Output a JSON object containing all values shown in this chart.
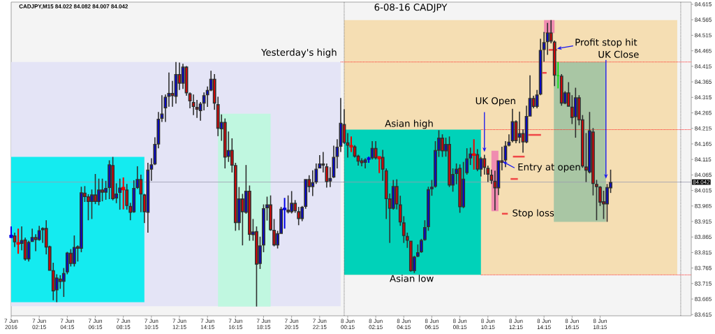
{
  "chart_data": {
    "type": "candlestick",
    "title": "6-08-16  CADJPY",
    "annotations": [
      "CADJPY,M15 84.022 84.082 84.007 84.042",
      {
        "text": "UK Open",
        "x": "2016-06-08T10:00",
        "y": 84.139
      },
      {
        "text": "Entry at open",
        "x": "2016-06-08T11:18",
        "y": 84.108
      },
      {
        "text": "Profit stop hit",
        "x": "2016-06-08T15:11",
        "y": 84.472
      },
      {
        "text": "UK Close",
        "x": "2016-06-08T18:40",
        "y": 84.053
      },
      {
        "text": "Stop loss",
        "x": "2016-06-08T11:40",
        "y": 83.94
      },
      {
        "text": "Asian high",
        "x": "2016-06-08T04:38",
        "y": 84.211
      },
      {
        "text": "Asian low",
        "x": "2016-06-08T04:49",
        "y": 83.743
      }
    ],
    "xlim": [
      "2016-06-07T00:15",
      "2016-06-09T00:45"
    ],
    "xticks": [
      {
        "value": "2016-06-07T00:15",
        "label": "7 Jun 2016"
      },
      {
        "value": "2016-06-07T02:15",
        "label": "7 Jun 02:15"
      },
      {
        "value": "2016-06-07T04:15",
        "label": "7 Jun 04:15"
      },
      {
        "value": "2016-06-07T06:15",
        "label": "7 Jun 06:15"
      },
      {
        "value": "2016-06-07T08:15",
        "label": "7 Jun 08:15"
      },
      {
        "value": "2016-06-07T10:15",
        "label": "7 Jun 10:15"
      },
      {
        "value": "2016-06-07T12:15",
        "label": "7 Jun 12:15"
      },
      {
        "value": "2016-06-07T14:15",
        "label": "7 Jun 14:15"
      },
      {
        "value": "2016-06-07T16:15",
        "label": "7 Jun 16:15"
      },
      {
        "value": "2016-06-07T18:15",
        "label": "7 Jun 18:15"
      },
      {
        "value": "2016-06-07T20:15",
        "label": "7 Jun 20:15"
      },
      {
        "value": "2016-06-07T22:15",
        "label": "7 Jun 22:15"
      },
      {
        "value": "2016-06-08T00:15",
        "label": "8 Jun 00:15"
      },
      {
        "value": "2016-06-08T02:15",
        "label": "8 Jun 02:15"
      },
      {
        "value": "2016-06-08T04:15",
        "label": "8 Jun 04:15"
      },
      {
        "value": "2016-06-08T06:15",
        "label": "8 Jun 06:15"
      },
      {
        "value": "2016-06-08T08:15",
        "label": "8 Jun 08:15"
      },
      {
        "value": "2016-06-08T10:15",
        "label": "8 Jun 10:15"
      },
      {
        "value": "2016-06-08T12:15",
        "label": "8 Jun 12:15"
      },
      {
        "value": "2016-06-08T14:15",
        "label": "8 Jun 14:15"
      },
      {
        "value": "2016-06-08T16:15",
        "label": "8 Jun 16:15"
      },
      {
        "value": "2016-06-08T18:15",
        "label": "8 Jun 18:15"
      }
    ],
    "ylim": [
      83.611,
      84.622
    ],
    "yticks": [
      83.615,
      83.665,
      83.715,
      83.765,
      83.815,
      83.865,
      83.915,
      83.965,
      84.015,
      84.065,
      84.115,
      84.165,
      84.215,
      84.265,
      84.315,
      84.365,
      84.415,
      84.465,
      84.515,
      84.565,
      84.615
    ],
    "ref_lines": [
      {
        "axis": "y",
        "value": 84.042,
        "label": "84.042",
        "color": "#9c9cb0"
      },
      {
        "axis": "x",
        "value": "2016-06-08T00:00",
        "color": "#505050",
        "line_style": "dotted"
      },
      {
        "axis": "x",
        "value": "2016-06-09T00:00",
        "color": "#505050",
        "line_style": "dotted"
      }
    ],
    "series": [
      {
        "type": "area",
        "x": [
          "2016-06-07T00:15",
          "2016-06-07T23:45"
        ],
        "values": [
          null,
          null
        ],
        "lower": [
          83.642,
          83.642
        ],
        "upper": [
          84.429,
          84.429
        ],
        "color": "#e4e4f6"
      },
      {
        "type": "area",
        "x": [
          "2016-06-07T00:15",
          "2016-06-07T09:45"
        ],
        "values": [
          null,
          null
        ],
        "lower": [
          83.655,
          83.655
        ],
        "upper": [
          84.123,
          84.123
        ],
        "color": "#14ebf0"
      },
      {
        "type": "area",
        "x": [
          "2016-06-07T15:00",
          "2016-06-07T18:45"
        ],
        "values": [
          null,
          null
        ],
        "lower": [
          83.641,
          83.641
        ],
        "upper": [
          84.262,
          84.262
        ],
        "color": "#c0f7e0"
      },
      {
        "type": "area",
        "x": [
          "2016-06-08T00:00",
          "2016-06-08T23:45"
        ],
        "values": [
          null,
          null
        ],
        "lower": [
          83.743,
          83.743
        ],
        "upper": [
          84.564,
          84.564
        ],
        "color": "#f5deb3"
      },
      {
        "type": "area",
        "x": [
          "2016-06-08T00:00",
          "2016-06-08T09:45"
        ],
        "values": [
          null,
          null
        ],
        "lower": [
          83.743,
          83.743
        ],
        "upper": [
          84.211,
          84.211
        ],
        "color": "#00d2b9"
      },
      {
        "type": "area",
        "x": [
          "2016-06-08T10:30",
          "2016-06-08T11:00"
        ],
        "values": [
          null,
          null
        ],
        "lower": [
          83.948,
          83.948
        ],
        "upper": [
          84.143,
          84.143
        ],
        "color": "#f08cb0"
      },
      {
        "type": "area",
        "x": [
          "2016-06-08T14:15",
          "2016-06-08T15:00"
        ],
        "values": [
          null,
          null
        ],
        "lower": [
          84.522,
          84.522
        ],
        "upper": [
          84.564,
          84.564
        ],
        "color": "#f08cb0"
      },
      {
        "type": "area",
        "x": [
          "2016-06-08T14:57",
          "2016-06-08T18:40"
        ],
        "values": [
          null,
          null
        ],
        "lower": [
          83.914,
          83.914
        ],
        "upper": [
          84.429,
          84.429
        ],
        "color": "#a9c6a4"
      },
      {
        "type": "line",
        "name": "Yesterday's high",
        "x": [
          "2016-06-07T23:45",
          "2016-06-09T00:45"
        ],
        "values": [
          84.429,
          84.429
        ],
        "color": "#ff2020",
        "line_style": "dotted"
      },
      {
        "type": "line",
        "x": [
          "2016-06-08T09:45",
          "2016-06-09T00:45"
        ],
        "values": [
          84.211,
          84.211
        ],
        "color": "#ff2020",
        "line_style": "dotted"
      },
      {
        "type": "line",
        "x": [
          "2016-06-08T09:45",
          "2016-06-09T00:45"
        ],
        "values": [
          83.743,
          83.743
        ],
        "color": "#ff2020",
        "line_style": "dotted"
      },
      {
        "type": "line",
        "x": [
          "2016-06-08T11:15",
          "2016-06-08T11:40"
        ],
        "values": [
          83.94,
          83.94
        ],
        "color": "#f04848"
      },
      {
        "type": "line",
        "x": [
          "2016-06-08T11:52",
          "2016-06-08T12:23"
        ],
        "values": [
          84.052,
          84.052
        ],
        "color": "#f04848"
      },
      {
        "type": "line",
        "x": [
          "2016-06-08T12:02",
          "2016-06-08T12:52"
        ],
        "values": [
          84.124,
          84.124
        ],
        "color": "#f04848"
      },
      {
        "type": "line",
        "x": [
          "2016-06-08T13:08",
          "2016-06-08T14:02"
        ],
        "values": [
          84.194,
          84.194
        ],
        "color": "#f04848"
      },
      {
        "type": "line",
        "x": [
          "2016-06-08T14:08",
          "2016-06-08T14:26"
        ],
        "values": [
          84.394,
          84.394
        ],
        "color": "#f04848"
      },
      {
        "type": "line",
        "x": [
          "2016-06-08T14:35",
          "2016-06-08T15:11"
        ],
        "values": [
          84.468,
          84.468
        ],
        "color": "#f04848"
      },
      {
        "color": "#303030",
        "x": [
          "2016-06-07T00:15",
          "2016-06-07T00:30",
          "2016-06-07T00:45",
          "2016-06-07T01:00",
          "2016-06-07T01:15",
          "2016-06-07T01:30",
          "2016-06-07T01:45",
          "2016-06-07T02:00",
          "2016-06-07T02:15",
          "2016-06-07T02:30",
          "2016-06-07T02:45",
          "2016-06-07T03:00",
          "2016-06-07T03:15",
          "2016-06-07T03:30",
          "2016-06-07T03:45",
          "2016-06-07T04:00",
          "2016-06-07T04:15",
          "2016-06-07T04:30",
          "2016-06-07T04:45",
          "2016-06-07T05:00",
          "2016-06-07T05:15",
          "2016-06-07T05:30",
          "2016-06-07T05:45",
          "2016-06-07T06:00",
          "2016-06-07T06:15",
          "2016-06-07T06:30",
          "2016-06-07T06:45",
          "2016-06-07T07:00",
          "2016-06-07T07:15",
          "2016-06-07T07:30",
          "2016-06-07T07:45",
          "2016-06-07T08:00",
          "2016-06-07T08:15",
          "2016-06-07T08:30",
          "2016-06-07T08:45",
          "2016-06-07T09:00",
          "2016-06-07T09:15",
          "2016-06-07T09:30",
          "2016-06-07T09:45",
          "2016-06-07T10:00",
          "2016-06-07T10:15",
          "2016-06-07T10:30",
          "2016-06-07T10:45",
          "2016-06-07T11:00",
          "2016-06-07T11:15",
          "2016-06-07T11:30",
          "2016-06-07T11:45",
          "2016-06-07T12:00",
          "2016-06-07T12:15",
          "2016-06-07T12:30",
          "2016-06-07T12:45",
          "2016-06-07T13:00",
          "2016-06-07T13:15",
          "2016-06-07T13:30",
          "2016-06-07T13:45",
          "2016-06-07T14:00",
          "2016-06-07T14:15",
          "2016-06-07T14:30",
          "2016-06-07T14:45",
          "2016-06-07T15:00",
          "2016-06-07T15:15",
          "2016-06-07T15:30",
          "2016-06-07T15:45",
          "2016-06-07T16:00",
          "2016-06-07T16:15",
          "2016-06-07T16:30",
          "2016-06-07T16:45",
          "2016-06-07T17:00",
          "2016-06-07T17:15",
          "2016-06-07T17:30",
          "2016-06-07T17:45",
          "2016-06-07T18:00",
          "2016-06-07T18:15",
          "2016-06-07T18:30",
          "2016-06-07T18:45",
          "2016-06-07T19:00",
          "2016-06-07T19:15",
          "2016-06-07T19:30",
          "2016-06-07T19:45",
          "2016-06-07T20:00",
          "2016-06-07T20:15",
          "2016-06-07T20:30",
          "2016-06-07T20:45",
          "2016-06-07T21:00",
          "2016-06-07T21:15",
          "2016-06-07T21:30",
          "2016-06-07T21:45",
          "2016-06-07T22:00",
          "2016-06-07T22:15",
          "2016-06-07T22:30",
          "2016-06-07T22:45",
          "2016-06-07T23:00",
          "2016-06-07T23:15",
          "2016-06-07T23:30",
          "2016-06-07T23:45",
          "2016-06-08T00:00",
          "2016-06-08T00:15",
          "2016-06-08T00:30",
          "2016-06-08T00:45",
          "2016-06-08T01:00",
          "2016-06-08T01:15",
          "2016-06-08T01:30",
          "2016-06-08T01:45",
          "2016-06-08T02:00",
          "2016-06-08T02:15",
          "2016-06-08T02:30",
          "2016-06-08T02:45",
          "2016-06-08T03:00",
          "2016-06-08T03:15",
          "2016-06-08T03:30",
          "2016-06-08T03:45",
          "2016-06-08T04:00",
          "2016-06-08T04:15",
          "2016-06-08T04:30",
          "2016-06-08T04:45",
          "2016-06-08T05:00",
          "2016-06-08T05:15",
          "2016-06-08T05:30",
          "2016-06-08T05:45",
          "2016-06-08T06:00",
          "2016-06-08T06:15",
          "2016-06-08T06:30",
          "2016-06-08T06:45",
          "2016-06-08T07:00",
          "2016-06-08T07:15",
          "2016-06-08T07:30",
          "2016-06-08T07:45",
          "2016-06-08T08:00",
          "2016-06-08T08:15",
          "2016-06-08T08:30",
          "2016-06-08T08:45",
          "2016-06-08T09:00",
          "2016-06-08T09:15",
          "2016-06-08T09:30",
          "2016-06-08T09:45",
          "2016-06-08T10:00",
          "2016-06-08T10:15",
          "2016-06-08T10:30",
          "2016-06-08T10:45",
          "2016-06-08T11:00",
          "2016-06-08T11:15",
          "2016-06-08T11:30",
          "2016-06-08T11:45",
          "2016-06-08T12:00",
          "2016-06-08T12:15",
          "2016-06-08T12:30",
          "2016-06-08T12:45",
          "2016-06-08T13:00",
          "2016-06-08T13:15",
          "2016-06-08T13:30",
          "2016-06-08T13:45",
          "2016-06-08T14:00",
          "2016-06-08T14:15",
          "2016-06-08T14:30",
          "2016-06-08T14:45",
          "2016-06-08T15:00",
          "2016-06-08T15:15",
          "2016-06-08T15:30",
          "2016-06-08T15:45",
          "2016-06-08T16:00",
          "2016-06-08T16:15",
          "2016-06-08T16:30",
          "2016-06-08T16:45",
          "2016-06-08T17:00",
          "2016-06-08T17:15",
          "2016-06-08T17:30",
          "2016-06-08T17:45",
          "2016-06-08T18:00",
          "2016-06-08T18:15",
          "2016-06-08T18:30",
          "2016-06-08T18:45",
          "2016-06-08T19:00"
        ],
        "ohlc": [
          [
            83.864,
            83.899,
            83.862,
            83.87
          ],
          [
            83.87,
            83.879,
            83.833,
            83.848
          ],
          [
            83.846,
            83.892,
            83.811,
            83.843
          ],
          [
            83.843,
            83.899,
            83.822,
            83.855
          ],
          [
            83.857,
            83.863,
            83.789,
            83.793
          ],
          [
            83.793,
            83.853,
            83.786,
            83.849
          ],
          [
            83.849,
            83.892,
            83.848,
            83.865
          ],
          [
            83.865,
            83.874,
            83.819,
            83.855
          ],
          [
            83.855,
            83.901,
            83.853,
            83.887
          ],
          [
            83.887,
            83.896,
            83.846,
            83.894
          ],
          [
            83.894,
            83.919,
            83.809,
            83.831
          ],
          [
            83.835,
            83.837,
            83.755,
            83.756
          ],
          [
            83.758,
            83.782,
            83.661,
            83.69
          ],
          [
            83.693,
            83.745,
            83.655,
            83.734
          ],
          [
            83.731,
            83.742,
            83.698,
            83.72
          ],
          [
            83.721,
            83.765,
            83.672,
            83.749
          ],
          [
            83.751,
            83.817,
            83.745,
            83.815
          ],
          [
            83.814,
            83.826,
            83.77,
            83.778
          ],
          [
            83.778,
            83.87,
            83.77,
            83.833
          ],
          [
            83.835,
            83.838,
            83.786,
            83.827
          ],
          [
            83.827,
            84.027,
            83.816,
            84.009
          ],
          [
            84.008,
            84.029,
            83.978,
            83.994
          ],
          [
            83.996,
            84.003,
            83.919,
            83.978
          ],
          [
            83.978,
            84.018,
            83.923,
            84.002
          ],
          [
            84.002,
            84.068,
            83.971,
            83.978
          ],
          [
            83.978,
            84.053,
            83.967,
            84.018
          ],
          [
            84.018,
            84.053,
            83.98,
            84.008
          ],
          [
            84.008,
            84.046,
            83.985,
            84.023
          ],
          [
            84.023,
            84.112,
            83.987,
            84.099
          ],
          [
            84.097,
            84.123,
            83.983,
            83.987
          ],
          [
            83.989,
            84.038,
            83.974,
            84.005
          ],
          [
            84.007,
            84.053,
            83.953,
            84.024
          ],
          [
            84.024,
            84.057,
            83.954,
            84.018
          ],
          [
            84.018,
            84.036,
            83.953,
            83.965
          ],
          [
            83.965,
            83.975,
            83.919,
            83.943
          ],
          [
            83.945,
            84.048,
            83.943,
            84.023
          ],
          [
            84.023,
            84.093,
            84.02,
            84.052
          ],
          [
            84.052,
            84.066,
            83.945,
            84.002
          ],
          [
            84.002,
            84.004,
            83.91,
            83.945
          ],
          [
            83.943,
            84.104,
            83.879,
            84.082
          ],
          [
            84.082,
            84.119,
            84.046,
            84.099
          ],
          [
            84.099,
            84.186,
            84.097,
            84.165
          ],
          [
            84.163,
            84.268,
            84.151,
            84.246
          ],
          [
            84.246,
            84.322,
            84.236,
            84.263
          ],
          [
            84.28,
            84.324,
            84.236,
            84.317
          ],
          [
            84.317,
            84.395,
            84.285,
            84.329
          ],
          [
            84.329,
            84.368,
            84.285,
            84.319
          ],
          [
            84.317,
            84.429,
            84.295,
            84.39
          ],
          [
            84.39,
            84.427,
            84.339,
            84.359
          ],
          [
            84.359,
            84.423,
            84.342,
            84.414
          ],
          [
            84.414,
            84.416,
            84.32,
            84.328
          ],
          [
            84.328,
            84.331,
            84.28,
            84.302
          ],
          [
            84.3,
            84.324,
            84.258,
            84.284
          ],
          [
            84.284,
            84.307,
            84.249,
            84.275
          ],
          [
            84.271,
            84.3,
            84.24,
            84.295
          ],
          [
            84.295,
            84.331,
            84.273,
            84.322
          ],
          [
            84.322,
            84.35,
            84.284,
            84.339
          ],
          [
            84.337,
            84.401,
            84.335,
            84.375
          ],
          [
            84.375,
            84.39,
            84.275,
            84.295
          ],
          [
            84.293,
            84.317,
            84.19,
            84.214
          ],
          [
            84.212,
            84.26,
            84.175,
            84.236
          ],
          [
            84.236,
            84.247,
            84.086,
            84.121
          ],
          [
            84.123,
            84.205,
            84.107,
            84.145
          ],
          [
            84.146,
            84.183,
            84.073,
            84.095
          ],
          [
            84.097,
            84.104,
            83.885,
            83.91
          ],
          [
            83.91,
            84.026,
            83.887,
            83.989
          ],
          [
            83.989,
            84.004,
            83.838,
            83.945
          ],
          [
            83.943,
            84.097,
            83.94,
            84.014
          ],
          [
            84.014,
            84.031,
            83.853,
            83.872
          ],
          [
            83.871,
            83.923,
            83.853,
            83.883
          ],
          [
            83.884,
            83.899,
            83.641,
            83.776
          ],
          [
            83.778,
            83.866,
            83.762,
            83.838
          ],
          [
            83.838,
            83.97,
            83.816,
            83.958
          ],
          [
            83.958,
            83.995,
            83.918,
            83.97
          ],
          [
            83.97,
            83.999,
            83.885,
            83.887
          ],
          [
            83.888,
            83.923,
            83.835,
            83.838
          ],
          [
            83.838,
            83.885,
            83.828,
            83.877
          ],
          [
            83.875,
            83.962,
            83.874,
            83.956
          ],
          [
            83.954,
            83.991,
            83.892,
            83.957
          ],
          [
            83.953,
            83.999,
            83.941,
            83.945
          ],
          [
            83.945,
            84.013,
            83.941,
            83.975
          ],
          [
            83.975,
            83.984,
            83.943,
            83.948
          ],
          [
            83.948,
            83.962,
            83.903,
            83.923
          ],
          [
            83.923,
            83.965,
            83.916,
            83.962
          ],
          [
            83.962,
            84.053,
            83.956,
            84.052
          ],
          [
            84.052,
            84.064,
            84.009,
            84.026
          ],
          [
            84.026,
            84.08,
            83.997,
            84.041
          ],
          [
            84.041,
            84.102,
            84.036,
            84.085
          ],
          [
            84.086,
            84.129,
            84.085,
            84.102
          ],
          [
            84.102,
            84.139,
            84.073,
            84.095
          ],
          [
            84.093,
            84.102,
            84.024,
            84.042
          ],
          [
            84.044,
            84.09,
            84.026,
            84.055
          ],
          [
            84.057,
            84.159,
            84.055,
            84.123
          ],
          [
            84.123,
            84.18,
            84.086,
            84.156
          ],
          [
            84.156,
            84.313,
            84.139,
            84.233
          ],
          [
            84.229,
            84.277,
            84.165,
            84.168
          ],
          [
            84.17,
            84.2,
            84.121,
            84.159
          ],
          [
            84.159,
            84.189,
            84.139,
            84.156
          ],
          [
            84.157,
            84.161,
            84.121,
            84.124
          ],
          [
            84.127,
            84.13,
            84.095,
            84.108
          ],
          [
            84.112,
            84.119,
            84.093,
            84.103
          ],
          [
            84.104,
            84.119,
            84.086,
            84.115
          ],
          [
            84.116,
            84.124,
            84.104,
            84.119
          ],
          [
            84.119,
            84.174,
            84.115,
            84.152
          ],
          [
            84.152,
            84.174,
            84.115,
            84.119
          ],
          [
            84.123,
            84.124,
            84.071,
            84.118
          ],
          [
            84.123,
            84.146,
            84.046,
            84.082
          ],
          [
            84.08,
            84.086,
            83.923,
            83.987
          ],
          [
            83.989,
            84.005,
            83.846,
            83.956
          ],
          [
            83.956,
            84.049,
            83.953,
            84.029
          ],
          [
            84.029,
            84.051,
            83.954,
            83.97
          ],
          [
            83.97,
            83.998,
            83.901,
            83.912
          ],
          [
            83.912,
            83.932,
            83.846,
            83.868
          ],
          [
            83.868,
            83.879,
            83.83,
            83.853
          ],
          [
            83.853,
            83.853,
            83.753,
            83.755
          ],
          [
            83.755,
            83.804,
            83.749,
            83.802
          ],
          [
            83.802,
            83.841,
            83.8,
            83.816
          ],
          [
            83.816,
            83.859,
            83.814,
            83.855
          ],
          [
            83.855,
            83.919,
            83.853,
            83.897
          ],
          [
            83.897,
            84.027,
            83.885,
            84.019
          ],
          [
            84.019,
            84.049,
            83.998,
            84.027
          ],
          [
            84.027,
            84.174,
            84.024,
            84.145
          ],
          [
            84.143,
            84.209,
            84.123,
            84.185
          ],
          [
            84.185,
            84.196,
            84.123,
            84.141
          ],
          [
            84.141,
            84.185,
            84.124,
            84.165
          ],
          [
            84.165,
            84.189,
            84.026,
            84.031
          ],
          [
            84.031,
            84.086,
            84.011,
            84.068
          ],
          [
            84.068,
            84.102,
            84.035,
            84.085
          ],
          [
            84.088,
            84.099,
            83.943,
            83.961
          ],
          [
            83.961,
            84.107,
            83.958,
            84.053
          ],
          [
            84.071,
            84.151,
            84.066,
            84.118
          ],
          [
            84.118,
            84.153,
            84.097,
            84.134
          ],
          [
            84.132,
            84.18,
            84.082,
            84.129
          ],
          [
            84.132,
            84.148,
            84.077,
            84.082
          ],
          [
            84.082,
            84.123,
            84.06,
            84.119
          ],
          [
            84.119,
            84.13,
            84.066,
            84.088
          ],
          [
            84.088,
            84.095,
            84.042,
            84.066
          ],
          [
            84.066,
            84.082,
            84.036,
            84.046
          ],
          [
            84.046,
            84.079,
            83.951,
            84.022
          ],
          [
            84.022,
            84.112,
            84.0,
            84.112
          ],
          [
            84.112,
            84.156,
            84.08,
            84.104
          ],
          [
            84.112,
            84.174,
            84.09,
            84.159
          ],
          [
            84.159,
            84.196,
            84.157,
            84.172
          ],
          [
            84.174,
            84.278,
            84.17,
            84.238
          ],
          [
            84.238,
            84.241,
            84.167,
            84.174
          ],
          [
            84.185,
            84.269,
            84.167,
            84.2
          ],
          [
            84.2,
            84.212,
            84.137,
            84.17
          ],
          [
            84.17,
            84.288,
            84.167,
            84.255
          ],
          [
            84.253,
            84.386,
            84.253,
            84.313
          ],
          [
            84.313,
            84.32,
            84.28,
            84.284
          ],
          [
            84.284,
            84.339,
            84.28,
            84.324
          ],
          [
            84.324,
            84.504,
            84.322,
            84.468
          ],
          [
            84.468,
            84.526,
            84.43,
            84.493
          ],
          [
            84.493,
            84.555,
            84.452,
            84.524
          ],
          [
            84.524,
            84.564,
            84.489,
            84.495
          ],
          [
            84.495,
            84.498,
            84.351,
            84.385
          ],
          [
            84.385,
            84.429,
            84.344,
            84.385
          ],
          [
            84.385,
            84.39,
            84.288,
            84.295
          ],
          [
            84.295,
            84.335,
            84.293,
            84.331
          ],
          [
            84.331,
            84.364,
            84.284,
            84.285
          ],
          [
            84.285,
            84.322,
            84.229,
            84.249
          ],
          [
            84.251,
            84.346,
            84.185,
            84.315
          ],
          [
            84.315,
            84.322,
            84.225,
            84.241
          ],
          [
            84.244,
            84.258,
            84.088,
            84.092
          ],
          [
            84.092,
            84.2,
            84.042,
            84.079
          ],
          [
            84.073,
            84.268,
            84.07,
            84.209
          ],
          [
            84.205,
            84.216,
            83.999,
            84.036
          ],
          [
            84.036,
            84.049,
            83.919,
            84.026
          ],
          [
            84.027,
            84.029,
            83.965,
            83.976
          ],
          [
            83.98,
            84.014,
            83.923,
            83.97
          ],
          [
            83.97,
            84.036,
            83.914,
            84.026
          ],
          [
            84.022,
            84.082,
            84.007,
            84.042
          ]
        ],
        "colors": [
          "#0000e6",
          "#f00000",
          "#f00000",
          "#0000e6",
          "#f00000",
          "#0000e6",
          "#0000e6",
          "#f00000",
          "#0000e6",
          "#0000e6",
          "#f00000",
          "#f00000",
          "#f00000",
          "#0000e6",
          "#f00000",
          "#0000e6",
          "#0000e6",
          "#f00000",
          "#0000e6",
          "#f00000",
          "#0000e6",
          "#f00000",
          "#f00000",
          "#0000e6",
          "#f00000",
          "#0000e6",
          "#f00000",
          "#0000e6",
          "#0000e6",
          "#f00000",
          "#0000e6",
          "#0000e6",
          "#f00000",
          "#f00000",
          "#f00000",
          "#0000e6",
          "#0000e6",
          "#f00000",
          "#f00000",
          "#0000e6",
          "#0000e6",
          "#0000e6",
          "#0000e6",
          "#0000e6",
          "#0000e6",
          "#0000e6",
          "#f00000",
          "#0000e6",
          "#f00000",
          "#0000e6",
          "#f00000",
          "#f00000",
          "#f00000",
          "#f00000",
          "#0000e6",
          "#0000e6",
          "#0000e6",
          "#0000e6",
          "#f00000",
          "#f00000",
          "#0000e6",
          "#f00000",
          "#0000e6",
          "#f00000",
          "#f00000",
          "#0000e6",
          "#f00000",
          "#0000e6",
          "#f00000",
          "#0000e6",
          "#f00000",
          "#0000e6",
          "#0000e6",
          "#0000e6",
          "#f00000",
          "#f00000",
          "#0000e6",
          "#0000e6",
          "#0000e6",
          "#f00000",
          "#0000e6",
          "#f00000",
          "#f00000",
          "#0000e6",
          "#0000e6",
          "#f00000",
          "#0000e6",
          "#0000e6",
          "#0000e6",
          "#f00000",
          "#f00000",
          "#0000e6",
          "#0000e6",
          "#0000e6",
          "#0000e6",
          "#f00000",
          "#f00000",
          "#f00000",
          "#f00000",
          "#f00000",
          "#f00000",
          "#0000e6",
          "#0000e6",
          "#0000e6",
          "#f00000",
          "#f00000",
          "#f00000",
          "#f00000",
          "#f00000",
          "#0000e6",
          "#f00000",
          "#f00000",
          "#f00000",
          "#f00000",
          "#f00000",
          "#0000e6",
          "#0000e6",
          "#0000e6",
          "#0000e6",
          "#0000e6",
          "#0000e6",
          "#0000e6",
          "#0000e6",
          "#f00000",
          "#0000e6",
          "#f00000",
          "#0000e6",
          "#0000e6",
          "#f00000",
          "#0000e6",
          "#0000e6",
          "#0000e6",
          "#f00000",
          "#f00000",
          "#0000e6",
          "#f00000",
          "#f00000",
          "#f00000",
          "#f00000",
          "#0000e6",
          "#f00000",
          "#0000e6",
          "#0000e6",
          "#0000e6",
          "#f00000",
          "#0000e6",
          "#f00000",
          "#0000e6",
          "#0000e6",
          "#f00000",
          "#0000e6",
          "#0000e6",
          "#0000e6",
          "#0000e6",
          "#f00000",
          "#f00000",
          "#00e000",
          "#f00000",
          "#0000e6",
          "#f00000",
          "#f00000",
          "#0000e6",
          "#f00000",
          "#f00000",
          "#f00000",
          "#0000e6",
          "#f00000",
          "#f00000",
          "#f00000",
          "#f00000",
          "#0000e6",
          "#0000e6"
        ]
      }
    ]
  }
}
